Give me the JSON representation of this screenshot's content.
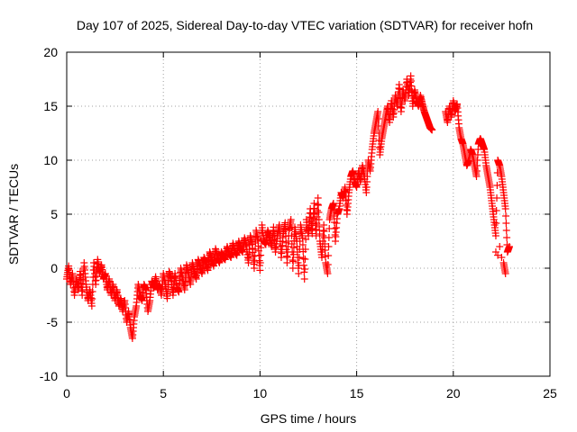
{
  "chart_data": {
    "type": "scatter",
    "title": "Day 107 of 2025, Sidereal Day-to-day VTEC variation (SDTVAR) for receiver hofn",
    "xlabel": "GPS time / hours",
    "ylabel": "SDTVAR / TECUs",
    "xlim": [
      0,
      25
    ],
    "ylim": [
      -10,
      20
    ],
    "xticks": [
      0,
      5,
      10,
      15,
      20,
      25
    ],
    "yticks": [
      -10,
      -5,
      0,
      5,
      10,
      15,
      20
    ],
    "grid": true,
    "marker": "plus",
    "series": [
      {
        "name": "SDTVAR",
        "color": "#ff0000",
        "points": [
          [
            0.0,
            -1.0
          ],
          [
            0.1,
            0.2
          ],
          [
            0.2,
            -1.5
          ],
          [
            0.3,
            -0.5
          ],
          [
            0.4,
            -2.5
          ],
          [
            0.5,
            -1.0
          ],
          [
            0.6,
            -2.0
          ],
          [
            0.7,
            -0.3
          ],
          [
            0.8,
            -2.5
          ],
          [
            0.9,
            0.5
          ],
          [
            1.0,
            -1.5
          ],
          [
            1.1,
            -3.0
          ],
          [
            1.2,
            -2.0
          ],
          [
            1.3,
            -3.5
          ],
          [
            1.4,
            0.5
          ],
          [
            1.5,
            -1.5
          ],
          [
            1.6,
            0.8
          ],
          [
            1.7,
            -0.5
          ],
          [
            1.8,
            0.3
          ],
          [
            1.9,
            -1.0
          ],
          [
            2.0,
            -0.5
          ],
          [
            2.1,
            -2.0
          ],
          [
            2.2,
            -1.0
          ],
          [
            2.3,
            -2.5
          ],
          [
            2.4,
            -1.5
          ],
          [
            2.5,
            -3.0
          ],
          [
            2.6,
            -2.0
          ],
          [
            2.7,
            -3.5
          ],
          [
            2.8,
            -2.8
          ],
          [
            2.9,
            -4.0
          ],
          [
            3.0,
            -3.0
          ],
          [
            3.1,
            -5.0
          ],
          [
            3.2,
            -4.0
          ],
          [
            3.3,
            -5.5
          ],
          [
            3.4,
            -6.5
          ],
          [
            3.5,
            -4.5
          ],
          [
            3.6,
            -3.5
          ],
          [
            3.7,
            -1.5
          ],
          [
            3.8,
            -2.5
          ],
          [
            3.9,
            -3.0
          ],
          [
            4.0,
            -1.5
          ],
          [
            4.1,
            -2.0
          ],
          [
            4.2,
            -4.0
          ],
          [
            4.3,
            -3.0
          ],
          [
            4.4,
            -1.2
          ],
          [
            4.5,
            -1.8
          ],
          [
            4.6,
            -0.8
          ],
          [
            4.7,
            -2.0
          ],
          [
            4.8,
            -1.5
          ],
          [
            4.9,
            -2.5
          ],
          [
            5.0,
            -0.5
          ],
          [
            5.1,
            -1.5
          ],
          [
            5.2,
            -2.8
          ],
          [
            5.3,
            -0.3
          ],
          [
            5.4,
            -1.0
          ],
          [
            5.5,
            -2.5
          ],
          [
            5.6,
            -0.5
          ],
          [
            5.7,
            -1.8
          ],
          [
            5.8,
            -2.2
          ],
          [
            5.9,
            0.0
          ],
          [
            6.0,
            -1.0
          ],
          [
            6.1,
            -2.0
          ],
          [
            6.2,
            0.3
          ],
          [
            6.3,
            -0.5
          ],
          [
            6.4,
            -1.5
          ],
          [
            6.5,
            0.5
          ],
          [
            6.6,
            -0.3
          ],
          [
            6.7,
            -1.0
          ],
          [
            6.8,
            0.8
          ],
          [
            6.9,
            0.2
          ],
          [
            7.0,
            -0.5
          ],
          [
            7.1,
            1.0
          ],
          [
            7.2,
            0.5
          ],
          [
            7.3,
            -0.2
          ],
          [
            7.4,
            1.5
          ],
          [
            7.5,
            0.8
          ],
          [
            7.6,
            0.2
          ],
          [
            7.7,
            1.8
          ],
          [
            7.8,
            1.0
          ],
          [
            7.9,
            0.5
          ],
          [
            8.0,
            1.5
          ],
          [
            8.1,
            1.0
          ],
          [
            8.2,
            0.8
          ],
          [
            8.3,
            2.0
          ],
          [
            8.4,
            1.3
          ],
          [
            8.5,
            1.0
          ],
          [
            8.6,
            2.3
          ],
          [
            8.7,
            1.5
          ],
          [
            8.8,
            1.2
          ],
          [
            8.9,
            2.5
          ],
          [
            9.0,
            1.8
          ],
          [
            9.1,
            1.5
          ],
          [
            9.2,
            2.8
          ],
          [
            9.3,
            2.0
          ],
          [
            9.4,
            0.5
          ],
          [
            9.5,
            3.0
          ],
          [
            9.6,
            2.2
          ],
          [
            9.7,
            0.0
          ],
          [
            9.8,
            3.5
          ],
          [
            9.9,
            2.5
          ],
          [
            10.0,
            -0.2
          ],
          [
            10.1,
            4.0
          ],
          [
            10.2,
            2.5
          ],
          [
            10.3,
            2.2
          ],
          [
            10.4,
            3.5
          ],
          [
            10.5,
            2.8
          ],
          [
            10.6,
            2.0
          ],
          [
            10.7,
            3.8
          ],
          [
            10.8,
            1.5
          ],
          [
            10.9,
            3.0
          ],
          [
            11.0,
            4.0
          ],
          [
            11.1,
            1.0
          ],
          [
            11.2,
            3.2
          ],
          [
            11.3,
            4.2
          ],
          [
            11.4,
            0.5
          ],
          [
            11.5,
            3.5
          ],
          [
            11.6,
            4.5
          ],
          [
            11.7,
            0.0
          ],
          [
            11.8,
            3.8
          ],
          [
            11.9,
            2.5
          ],
          [
            12.0,
            -0.5
          ],
          [
            12.1,
            4.0
          ],
          [
            12.2,
            2.8
          ],
          [
            12.3,
            -1.0
          ],
          [
            12.4,
            4.5
          ],
          [
            12.5,
            3.0
          ],
          [
            12.6,
            5.5
          ],
          [
            12.7,
            3.2
          ],
          [
            12.8,
            6.0
          ],
          [
            12.9,
            3.0
          ],
          [
            13.0,
            6.5
          ],
          [
            13.1,
            2.5
          ],
          [
            13.2,
            1.0
          ],
          [
            13.3,
            4.0
          ],
          [
            13.4,
            0.5
          ],
          [
            13.5,
            -0.5
          ],
          [
            13.6,
            4.5
          ],
          [
            13.7,
            5.5
          ],
          [
            13.8,
            6.0
          ],
          [
            13.9,
            2.5
          ],
          [
            14.0,
            5.0
          ],
          [
            14.1,
            5.5
          ],
          [
            14.2,
            7.0
          ],
          [
            14.3,
            6.5
          ],
          [
            14.4,
            7.5
          ],
          [
            14.5,
            5.0
          ],
          [
            14.6,
            7.0
          ],
          [
            14.7,
            8.5
          ],
          [
            14.8,
            9.0
          ],
          [
            14.9,
            8.0
          ],
          [
            15.0,
            7.5
          ],
          [
            15.1,
            9.0
          ],
          [
            15.2,
            8.0
          ],
          [
            15.3,
            9.5
          ],
          [
            15.4,
            8.5
          ],
          [
            15.5,
            7.0
          ],
          [
            15.6,
            10.0
          ],
          [
            15.7,
            9.0
          ],
          [
            15.8,
            11.0
          ],
          [
            15.9,
            12.5
          ],
          [
            16.0,
            13.5
          ],
          [
            16.1,
            14.5
          ],
          [
            16.2,
            10.5
          ],
          [
            16.3,
            12.0
          ],
          [
            16.4,
            13.0
          ],
          [
            16.5,
            14.0
          ],
          [
            16.6,
            15.0
          ],
          [
            16.7,
            13.5
          ],
          [
            16.8,
            15.5
          ],
          [
            16.9,
            14.0
          ],
          [
            17.0,
            16.0
          ],
          [
            17.1,
            15.0
          ],
          [
            17.2,
            17.0
          ],
          [
            17.3,
            14.5
          ],
          [
            17.4,
            16.5
          ],
          [
            17.5,
            15.5
          ],
          [
            17.6,
            17.5
          ],
          [
            17.7,
            16.0
          ],
          [
            17.8,
            17.8
          ],
          [
            17.9,
            15.0
          ],
          [
            18.0,
            16.5
          ],
          [
            18.1,
            15.5
          ],
          [
            18.2,
            15.0
          ],
          [
            18.3,
            16.0
          ],
          [
            18.4,
            15.2
          ],
          [
            18.5,
            14.5
          ],
          [
            18.6,
            14.0
          ],
          [
            18.7,
            13.5
          ],
          [
            18.8,
            13.0
          ],
          [
            18.9,
            12.8
          ],
          [
            19.6,
            14.5
          ],
          [
            19.7,
            13.5
          ],
          [
            19.8,
            15.0
          ],
          [
            19.9,
            14.0
          ],
          [
            20.0,
            15.5
          ],
          [
            20.1,
            14.5
          ],
          [
            20.2,
            15.2
          ],
          [
            20.3,
            13.0
          ],
          [
            20.4,
            12.0
          ],
          [
            20.5,
            11.5
          ],
          [
            20.6,
            10.5
          ],
          [
            20.7,
            9.5
          ],
          [
            20.8,
            10.0
          ],
          [
            20.9,
            11.0
          ],
          [
            21.0,
            10.5
          ],
          [
            21.1,
            9.5
          ],
          [
            21.2,
            8.5
          ],
          [
            21.3,
            11.5
          ],
          [
            21.4,
            12.0
          ],
          [
            21.5,
            11.5
          ],
          [
            21.6,
            11.0
          ],
          [
            21.7,
            9.5
          ],
          [
            21.8,
            8.5
          ],
          [
            21.9,
            7.5
          ],
          [
            22.0,
            6.0
          ],
          [
            22.1,
            4.5
          ],
          [
            22.2,
            3.0
          ],
          [
            22.3,
            10.0
          ],
          [
            22.4,
            9.5
          ],
          [
            22.5,
            8.5
          ],
          [
            22.6,
            7.0
          ],
          [
            22.7,
            5.5
          ],
          [
            22.8,
            1.5
          ],
          [
            22.9,
            2.0
          ],
          [
            22.6,
            0.5
          ],
          [
            22.7,
            -0.5
          ],
          [
            22.5,
            1.0
          ],
          [
            22.4,
            2.0
          ],
          [
            22.3,
            1.2
          ],
          [
            22.2,
            1.5
          ]
        ]
      }
    ]
  }
}
